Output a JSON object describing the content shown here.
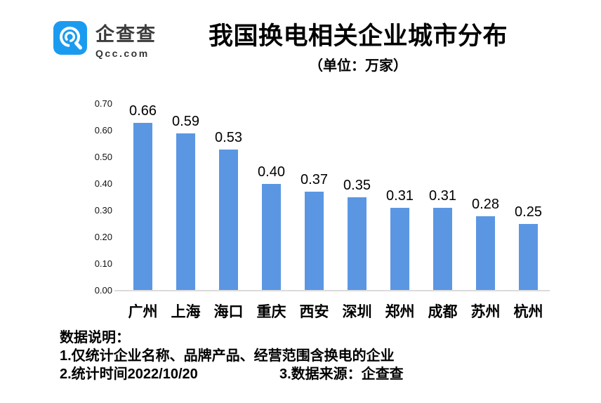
{
  "header": {
    "logo": {
      "name": "企查查",
      "domain": "Qcc.com"
    },
    "title": "我国换电相关企业城市分布",
    "subtitle": "（单位：万家）"
  },
  "chart_data": {
    "type": "bar",
    "title": "我国换电相关企业城市分布",
    "unit_note": "（单位：万家）",
    "categories": [
      "广州",
      "上海",
      "海口",
      "重庆",
      "西安",
      "深圳",
      "郑州",
      "成都",
      "苏州",
      "杭州"
    ],
    "values": [
      0.66,
      0.59,
      0.53,
      0.4,
      0.37,
      0.35,
      0.31,
      0.31,
      0.28,
      0.25
    ],
    "ylim": [
      0,
      0.7
    ],
    "yticks": [
      "0.00",
      "0.10",
      "0.20",
      "0.30",
      "0.40",
      "0.50",
      "0.60",
      "0.70"
    ],
    "grid": false,
    "legend": null,
    "bar_color": "#5b96e3",
    "axis_line_color": "#dbdbdb"
  },
  "footer": {
    "heading": "数据说明：",
    "note1": "1.仅统计企业名称、品牌产品、经营范围含换电的企业",
    "note2": "2.统计时间2022/10/20",
    "note3": "3.数据来源：企查查"
  },
  "colors": {
    "logo_blue": "#1b9bf0",
    "bar_blue": "#5b96e3"
  }
}
